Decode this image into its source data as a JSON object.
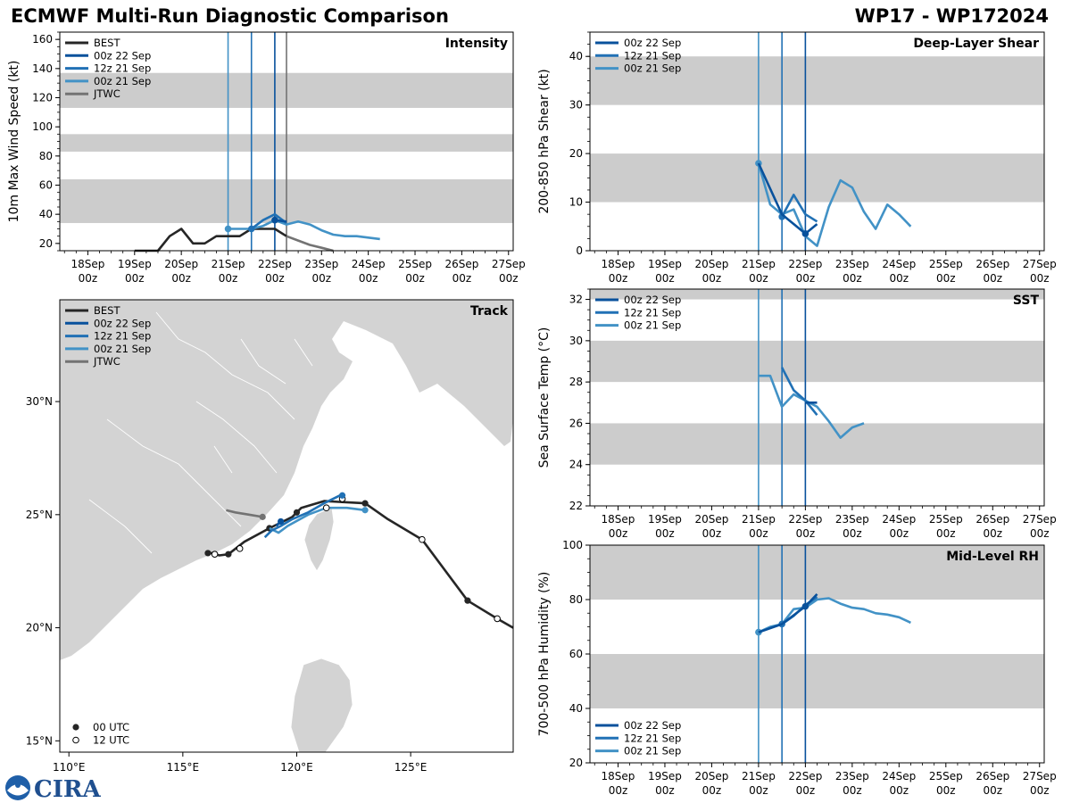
{
  "header": {
    "title_left": "ECMWF Multi-Run Diagnostic Comparison",
    "title_right": "WP17 - WP172024"
  },
  "colors": {
    "best": "#262626",
    "run_00z22": "#08519c",
    "run_12z21": "#2171b5",
    "run_00z21": "#4292c6",
    "jtwc": "#737373",
    "band": "#cccccc",
    "land": "#d3d3d3"
  },
  "logo": {
    "text": "CIRA",
    "agency_icon": "noaa-logo-icon"
  },
  "chart_data": [
    {
      "id": "intensity",
      "type": "line",
      "title": "Intensity",
      "ylabel": "10m Max Wind Speed (kt)",
      "xlabel": "",
      "xlim": [
        -3.6,
        6.1
      ],
      "ylim": [
        15,
        165
      ],
      "yticks": [
        20,
        40,
        60,
        80,
        100,
        120,
        140,
        160
      ],
      "ytick_labels": [
        "20",
        "40",
        "60",
        "80",
        "100",
        "120",
        "140",
        "160"
      ],
      "xticks": [
        -3,
        -2,
        -1,
        0,
        1,
        2,
        3,
        4,
        5,
        6
      ],
      "xtick_labels": [
        [
          "18Sep",
          "00z"
        ],
        [
          "19Sep",
          "00z"
        ],
        [
          "20Sep",
          "00z"
        ],
        [
          "21Sep",
          "00z"
        ],
        [
          "22Sep",
          "00z"
        ],
        [
          "23Sep",
          "00z"
        ],
        [
          "24Sep",
          "00z"
        ],
        [
          "25Sep",
          "00z"
        ],
        [
          "26Sep",
          "00z"
        ],
        [
          "27Sep",
          "00z"
        ]
      ],
      "bands": [
        [
          34,
          64
        ],
        [
          83,
          95
        ],
        [
          113,
          137
        ]
      ],
      "vlines": [
        {
          "x": 0,
          "color_key": "run_00z21"
        },
        {
          "x": 0.5,
          "color_key": "run_12z21"
        },
        {
          "x": 1,
          "color_key": "run_00z22"
        },
        {
          "x": 1.25,
          "color_key": "jtwc"
        }
      ],
      "legend": [
        "BEST",
        "00z 22 Sep",
        "12z 21 Sep",
        "00z 21 Sep",
        "JTWC"
      ],
      "legend_colors": [
        "best",
        "run_00z22",
        "run_12z21",
        "run_00z21",
        "jtwc"
      ],
      "legend_position": "top-left",
      "series": [
        {
          "name": "BEST",
          "color_key": "best",
          "x": [
            -2,
            -1.5,
            -1.25,
            -1,
            -0.75,
            -0.5,
            -0.25,
            0,
            0.25,
            0.5,
            0.75,
            1,
            1.25
          ],
          "y": [
            15,
            15,
            25,
            30,
            20,
            20,
            25,
            25,
            25,
            30,
            30,
            30,
            25
          ]
        },
        {
          "name": "JTWC",
          "color_key": "jtwc",
          "x": [
            1.25,
            1.5,
            1.75,
            2,
            2.25
          ],
          "y": [
            25,
            22,
            19,
            17,
            15
          ]
        },
        {
          "name": "00z 21 Sep",
          "color_key": "run_00z21",
          "x": [
            0,
            0.25,
            0.5,
            0.75,
            1,
            1.25,
            1.5,
            1.75,
            2,
            2.25,
            2.5,
            2.75,
            3,
            3.25
          ],
          "y": [
            30,
            30,
            30,
            32,
            36,
            33,
            35,
            33,
            29,
            26,
            25,
            25,
            24,
            23
          ],
          "markers": [
            [
              0,
              30
            ]
          ]
        },
        {
          "name": "12z 21 Sep",
          "color_key": "run_12z21",
          "x": [
            0.5,
            0.75,
            1,
            1.25
          ],
          "y": [
            30,
            36,
            40,
            34
          ],
          "markers": [
            [
              0.5,
              30
            ]
          ]
        },
        {
          "name": "00z 22 Sep",
          "color_key": "run_00z22",
          "x": [
            1,
            1.25
          ],
          "y": [
            36,
            35
          ],
          "markers": [
            [
              1,
              36
            ]
          ]
        }
      ]
    },
    {
      "id": "track",
      "type": "line",
      "title": "Track",
      "xlabel": "",
      "ylabel": "",
      "xlim": [
        109.6,
        129.5
      ],
      "ylim": [
        14.5,
        34.5
      ],
      "xticks": [
        110,
        115,
        120,
        125
      ],
      "xtick_labels": [
        "110°E",
        "115°E",
        "120°E",
        "125°E"
      ],
      "yticks": [
        15,
        20,
        25,
        30
      ],
      "ytick_labels": [
        "15°N",
        "20°N",
        "25°N",
        "30°N"
      ],
      "legend": [
        "BEST",
        "00z 22 Sep",
        "12z 21 Sep",
        "00z 21 Sep",
        "JTWC"
      ],
      "legend_colors": [
        "best",
        "run_00z22",
        "run_12z21",
        "run_00z21",
        "jtwc"
      ],
      "legend_position": "top-left",
      "marker_legend": [
        "00 UTC",
        "12 UTC"
      ],
      "marker_legend_position": "bottom-left",
      "series": [
        {
          "name": "BEST",
          "color_key": "best",
          "x": [
            129.5,
            128.8,
            127.5,
            125.5,
            124,
            123,
            121.2,
            120.2,
            120,
            119.8,
            119.2,
            118.8,
            117.7,
            117,
            116.6,
            116.3,
            116
          ],
          "y": [
            20,
            20.4,
            21.2,
            23.9,
            24.8,
            25.5,
            25.6,
            25.3,
            25.1,
            24.9,
            24.6,
            24.4,
            23.8,
            23.25,
            23.2,
            23.3,
            23.3
          ],
          "filled": [
            [
              127.5,
              21.2
            ],
            [
              123,
              25.5
            ],
            [
              120,
              25.1
            ],
            [
              118.8,
              24.4
            ],
            [
              117,
              23.25
            ],
            [
              116.1,
              23.3
            ]
          ],
          "open": [
            [
              128.8,
              20.4
            ],
            [
              125.5,
              23.9
            ],
            [
              122,
              25.7
            ],
            [
              117.5,
              23.5
            ],
            [
              116.4,
              23.25
            ]
          ]
        },
        {
          "name": "JTWC",
          "color_key": "jtwc",
          "x": [
            118.5,
            117.9,
            117.3,
            116.9
          ],
          "y": [
            24.9,
            25,
            25.1,
            25.2
          ],
          "filled": [
            [
              118.5,
              24.9
            ]
          ]
        },
        {
          "name": "00z 21 Sep",
          "color_key": "run_00z21",
          "x": [
            123,
            122.2,
            121.3,
            120.5,
            119.6,
            119.2,
            118.8
          ],
          "y": [
            25.2,
            25.3,
            25.3,
            25,
            24.5,
            24.2,
            24.4
          ],
          "filled": [
            [
              123,
              25.2
            ]
          ],
          "open": [
            [
              121.3,
              25.3
            ]
          ]
        },
        {
          "name": "12z 21 Sep",
          "color_key": "run_12z21",
          "x": [
            122,
            121.2,
            120.5,
            119.8,
            119.3,
            118.9,
            118.6
          ],
          "y": [
            25.9,
            25.5,
            25.1,
            24.8,
            24.5,
            24.3,
            24
          ],
          "filled": [
            [
              122,
              25.85
            ]
          ]
        },
        {
          "name": "00z 22 Sep",
          "color_key": "run_00z22",
          "x": [
            119.3,
            119.1
          ],
          "y": [
            24.7,
            24.5
          ],
          "filled": [
            [
              119.3,
              24.7
            ]
          ]
        }
      ]
    },
    {
      "id": "shear",
      "type": "line",
      "title": "Deep-Layer Shear",
      "ylabel": "200-850 hPa Shear (kt)",
      "xlabel": "",
      "xlim": [
        -3.6,
        6.1
      ],
      "ylim": [
        0,
        45
      ],
      "yticks": [
        0,
        10,
        20,
        30,
        40
      ],
      "ytick_labels": [
        "0",
        "10",
        "20",
        "30",
        "40"
      ],
      "xticks": [
        -3,
        -2,
        -1,
        0,
        1,
        2,
        3,
        4,
        5,
        6
      ],
      "xtick_labels": [
        [
          "18Sep",
          "00z"
        ],
        [
          "19Sep",
          "00z"
        ],
        [
          "20Sep",
          "00z"
        ],
        [
          "21Sep",
          "00z"
        ],
        [
          "22Sep",
          "00z"
        ],
        [
          "23Sep",
          "00z"
        ],
        [
          "24Sep",
          "00z"
        ],
        [
          "25Sep",
          "00z"
        ],
        [
          "26Sep",
          "00z"
        ],
        [
          "27Sep",
          "00z"
        ]
      ],
      "bands": [
        [
          10,
          20
        ],
        [
          30,
          40
        ]
      ],
      "vlines": [
        {
          "x": 0,
          "color_key": "run_00z21"
        },
        {
          "x": 0.5,
          "color_key": "run_12z21"
        },
        {
          "x": 1,
          "color_key": "run_00z22"
        }
      ],
      "legend": [
        "00z 22 Sep",
        "12z 21 Sep",
        "00z 21 Sep"
      ],
      "legend_colors": [
        "run_00z22",
        "run_12z21",
        "run_00z21"
      ],
      "legend_position": "top-left",
      "series": [
        {
          "name": "00z 21 Sep",
          "color_key": "run_00z21",
          "x": [
            0,
            0.25,
            0.5,
            0.75,
            1,
            1.25,
            1.5,
            1.75,
            2,
            2.25,
            2.5,
            2.75,
            3,
            3.25
          ],
          "y": [
            18,
            9.5,
            7.5,
            8.5,
            3,
            1,
            9,
            14.5,
            13,
            8,
            4.5,
            9.5,
            7.5,
            5
          ],
          "markers": [
            [
              0,
              18
            ]
          ]
        },
        {
          "name": "12z 21 Sep",
          "color_key": "run_12z21",
          "x": [
            0.5,
            0.75,
            1,
            1.25
          ],
          "y": [
            7,
            11.5,
            7.5,
            6
          ],
          "markers": [
            [
              0.5,
              7
            ]
          ]
        },
        {
          "name": "00z 22 Sep",
          "color_key": "run_00z22",
          "x": [
            0,
            0.5,
            1,
            1.25
          ],
          "y": [
            18,
            7.5,
            3.5,
            5.5
          ],
          "markers": [
            [
              1,
              3.5
            ]
          ]
        }
      ]
    },
    {
      "id": "sst",
      "type": "line",
      "title": "SST",
      "ylabel": "Sea Surface Temp (°C)",
      "xlabel": "",
      "xlim": [
        -3.6,
        6.1
      ],
      "ylim": [
        22,
        32.5
      ],
      "yticks": [
        22,
        24,
        26,
        28,
        30,
        32
      ],
      "ytick_labels": [
        "22",
        "24",
        "26",
        "28",
        "30",
        "32"
      ],
      "xticks": [
        -3,
        -2,
        -1,
        0,
        1,
        2,
        3,
        4,
        5,
        6
      ],
      "xtick_labels": [
        [
          "18Sep",
          "00z"
        ],
        [
          "19Sep",
          "00z"
        ],
        [
          "20Sep",
          "00z"
        ],
        [
          "21Sep",
          "00z"
        ],
        [
          "22Sep",
          "00z"
        ],
        [
          "23Sep",
          "00z"
        ],
        [
          "24Sep",
          "00z"
        ],
        [
          "25Sep",
          "00z"
        ],
        [
          "26Sep",
          "00z"
        ],
        [
          "27Sep",
          "00z"
        ]
      ],
      "bands": [
        [
          24,
          26
        ],
        [
          28,
          30
        ],
        [
          32,
          34
        ]
      ],
      "vlines": [
        {
          "x": 0,
          "color_key": "run_00z21"
        },
        {
          "x": 0.5,
          "color_key": "run_12z21"
        },
        {
          "x": 1,
          "color_key": "run_00z22"
        }
      ],
      "legend": [
        "00z 22 Sep",
        "12z 21 Sep",
        "00z 21 Sep"
      ],
      "legend_colors": [
        "run_00z22",
        "run_12z21",
        "run_00z21"
      ],
      "legend_position": "top-left",
      "series": [
        {
          "name": "00z 21 Sep",
          "color_key": "run_00z21",
          "x": [
            0,
            0.25,
            0.5,
            0.75,
            1,
            1.25,
            1.5,
            1.75,
            2,
            2.25
          ],
          "y": [
            28.3,
            28.3,
            26.8,
            27.4,
            27.1,
            26.8,
            26.1,
            25.3,
            25.8,
            26
          ],
          "markers": []
        },
        {
          "name": "12z 21 Sep",
          "color_key": "run_12z21",
          "x": [
            0.5,
            0.75,
            1,
            1.25
          ],
          "y": [
            28.7,
            27.6,
            27.1,
            26.4
          ],
          "markers": []
        },
        {
          "name": "00z 22 Sep",
          "color_key": "run_00z22",
          "x": [
            1,
            1.25
          ],
          "y": [
            27,
            27
          ],
          "markers": []
        }
      ]
    },
    {
      "id": "rh",
      "type": "line",
      "title": "Mid-Level RH",
      "ylabel": "700-500 hPa Humidity (%)",
      "xlabel": "",
      "xlim": [
        -3.6,
        6.1
      ],
      "ylim": [
        20,
        100
      ],
      "yticks": [
        20,
        40,
        60,
        80,
        100
      ],
      "ytick_labels": [
        "20",
        "40",
        "60",
        "80",
        "100"
      ],
      "xticks": [
        -3,
        -2,
        -1,
        0,
        1,
        2,
        3,
        4,
        5,
        6
      ],
      "xtick_labels": [
        [
          "18Sep",
          "00z"
        ],
        [
          "19Sep",
          "00z"
        ],
        [
          "20Sep",
          "00z"
        ],
        [
          "21Sep",
          "00z"
        ],
        [
          "22Sep",
          "00z"
        ],
        [
          "23Sep",
          "00z"
        ],
        [
          "24Sep",
          "00z"
        ],
        [
          "25Sep",
          "00z"
        ],
        [
          "26Sep",
          "00z"
        ],
        [
          "27Sep",
          "00z"
        ]
      ],
      "bands": [
        [
          40,
          60
        ],
        [
          80,
          100
        ]
      ],
      "vlines": [
        {
          "x": 0,
          "color_key": "run_00z21"
        },
        {
          "x": 0.5,
          "color_key": "run_12z21"
        },
        {
          "x": 1,
          "color_key": "run_00z22"
        }
      ],
      "legend": [
        "00z 22 Sep",
        "12z 21 Sep",
        "00z 21 Sep"
      ],
      "legend_colors": [
        "run_00z22",
        "run_12z21",
        "run_00z21"
      ],
      "legend_position": "bottom-left",
      "series": [
        {
          "name": "00z 21 Sep",
          "color_key": "run_00z21",
          "x": [
            0,
            0.25,
            0.5,
            0.75,
            1,
            1.25,
            1.5,
            1.75,
            2,
            2.25,
            2.5,
            2.75,
            3,
            3.25
          ],
          "y": [
            68,
            70,
            71,
            76.5,
            77,
            80,
            80.5,
            78.5,
            77,
            76.5,
            75,
            74.5,
            73.5,
            71.5
          ],
          "markers": [
            [
              0,
              68
            ]
          ]
        },
        {
          "name": "12z 21 Sep",
          "color_key": "run_12z21",
          "x": [
            0.5,
            0.75,
            1,
            1.25
          ],
          "y": [
            71,
            74,
            78,
            81
          ],
          "markers": [
            [
              0.5,
              71
            ]
          ]
        },
        {
          "name": "00z 22 Sep",
          "color_key": "run_00z22",
          "x": [
            0,
            0.5,
            1,
            1.25
          ],
          "y": [
            68,
            71,
            77.5,
            82
          ],
          "markers": [
            [
              1,
              77.5
            ]
          ]
        }
      ]
    }
  ]
}
